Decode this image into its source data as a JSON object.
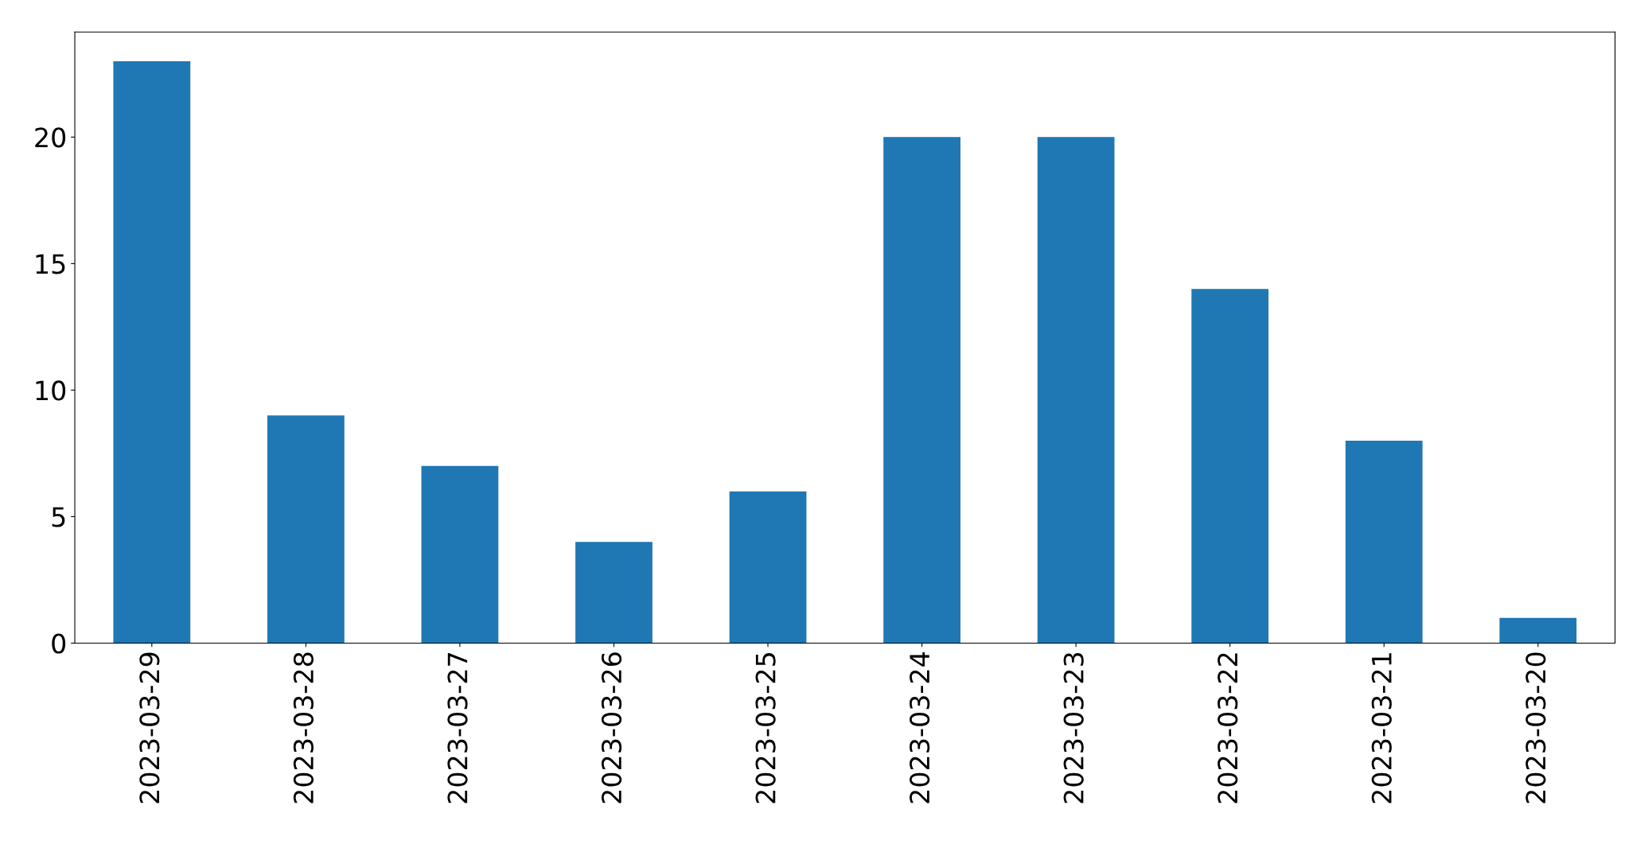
{
  "chart_data": {
    "type": "bar",
    "categories": [
      "2023-03-29",
      "2023-03-28",
      "2023-03-27",
      "2023-03-26",
      "2023-03-25",
      "2023-03-24",
      "2023-03-23",
      "2023-03-22",
      "2023-03-21",
      "2023-03-20"
    ],
    "values": [
      23,
      9,
      7,
      4,
      6,
      20,
      20,
      14,
      8,
      1
    ],
    "color": "#1f77b4",
    "ylim": [
      0,
      24.15
    ],
    "yticks": [
      0,
      5,
      10,
      15,
      20
    ],
    "grid": false,
    "legend": false
  }
}
